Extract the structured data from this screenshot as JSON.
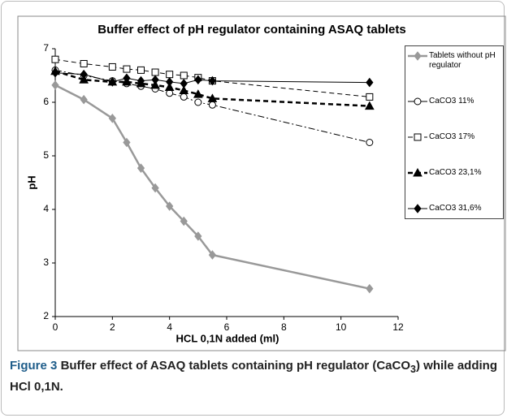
{
  "chart_data": {
    "type": "line",
    "title": "Buffer effect of pH regulator containing ASAQ tablets",
    "x_label": "HCL 0,1N added (ml)",
    "y_label": "pH",
    "xlim": [
      0,
      12
    ],
    "xticks": [
      0,
      2,
      4,
      6,
      8,
      10,
      12
    ],
    "ylim": [
      2,
      7
    ],
    "yticks": [
      2,
      3,
      4,
      5,
      6,
      7
    ],
    "x": [
      0,
      1,
      2,
      2.5,
      3,
      3.5,
      4,
      4.5,
      5,
      5.5,
      11
    ],
    "series": [
      {
        "name": "Tablets without pH regulator",
        "color": "#999999",
        "marker": "diamond",
        "line_style": "solid",
        "values": [
          6.32,
          6.05,
          5.7,
          5.25,
          4.77,
          4.4,
          4.06,
          3.78,
          3.5,
          3.15,
          2.52
        ]
      },
      {
        "name": "CaCO3 11%",
        "color": "#000000",
        "marker": "circle",
        "line_style": "dashdot",
        "values": [
          6.6,
          6.5,
          6.4,
          6.35,
          6.3,
          6.25,
          6.17,
          6.1,
          6.0,
          5.95,
          5.25
        ]
      },
      {
        "name": "CaCO3 17%",
        "color": "#000000",
        "marker": "square",
        "line_style": "dashed",
        "values": [
          6.8,
          6.72,
          6.66,
          6.62,
          6.6,
          6.56,
          6.52,
          6.5,
          6.46,
          6.4,
          6.1
        ]
      },
      {
        "name": "CaCO3 23,1%",
        "color": "#000000",
        "marker": "triangle",
        "line_style": "thickdashed",
        "values": [
          6.58,
          6.42,
          6.38,
          6.38,
          6.35,
          6.32,
          6.28,
          6.22,
          6.15,
          6.07,
          5.93
        ]
      },
      {
        "name": "CaCO3 31,6%",
        "color": "#000000",
        "marker": "diamond",
        "line_style": "solid",
        "values": [
          6.55,
          6.52,
          6.38,
          6.45,
          6.4,
          6.42,
          6.38,
          6.35,
          6.42,
          6.4,
          6.37
        ]
      }
    ],
    "legend": "right"
  },
  "caption": {
    "label": "Figure 3",
    "text_before": "Buffer effect of ASAQ tablets containing pH regulator (CaCO",
    "subscript": "3",
    "text_after": ") while adding HCl 0,1N."
  }
}
